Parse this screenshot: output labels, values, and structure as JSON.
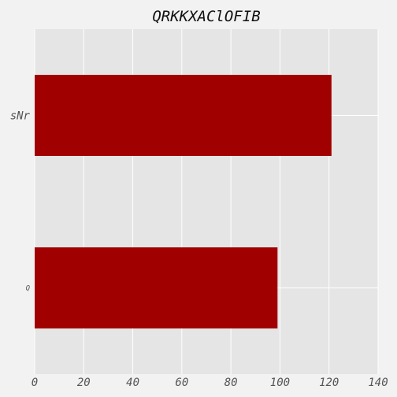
{
  "chart_data": {
    "type": "bar",
    "orientation": "horizontal",
    "title": "QRKKXAClOFIB",
    "xlabel": "",
    "ylabel": "",
    "categories": [
      "sNr",
      "Q"
    ],
    "values": [
      121,
      99
    ],
    "xlim": [
      0,
      140
    ],
    "xticks": [
      0,
      20,
      40,
      60,
      80,
      100,
      120,
      140
    ],
    "grid": true,
    "legend": "none",
    "bar_color": "#a00000",
    "plot_background": "#e5e5e5",
    "figure_background": "#f2f2f2",
    "grid_color": "#ffffff"
  }
}
